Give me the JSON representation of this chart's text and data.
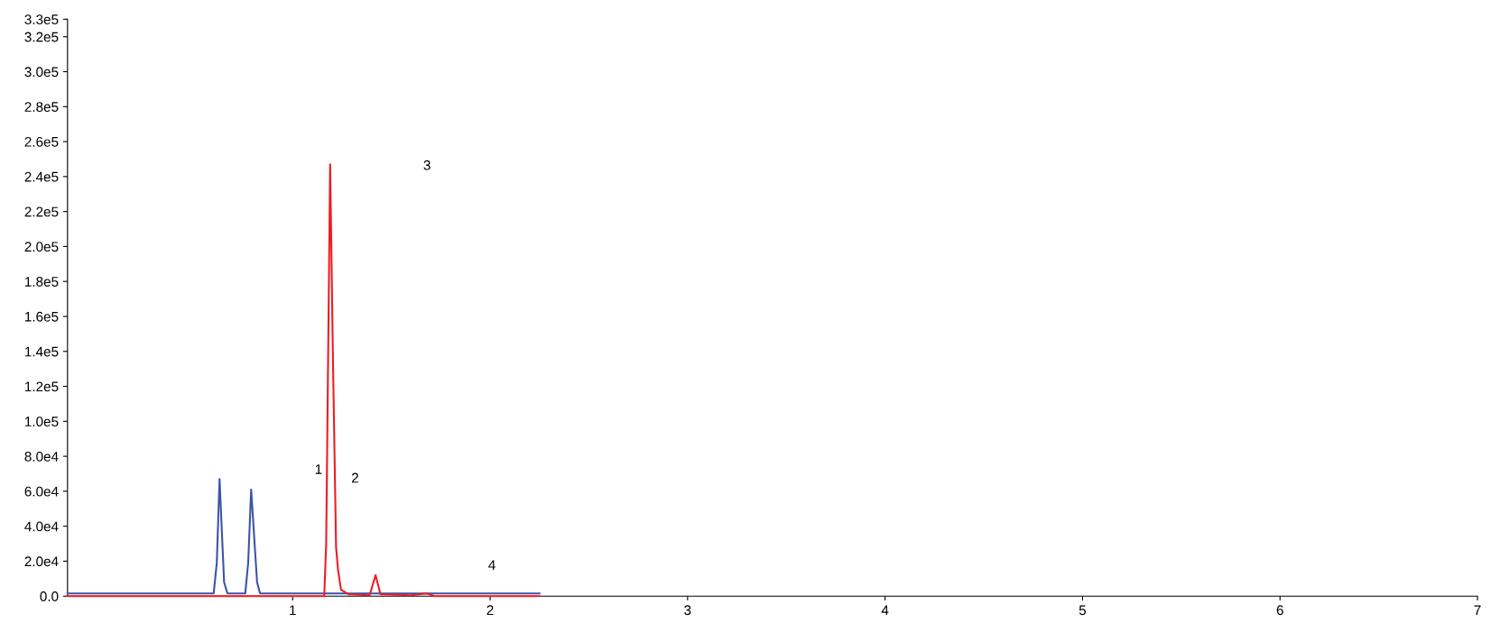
{
  "chart_data": {
    "type": "line",
    "xlim": [
      -0.14,
      7.0
    ],
    "xticks": [
      1,
      2,
      3,
      4,
      5,
      6,
      7
    ],
    "ylim": [
      0,
      330000
    ],
    "yticks": [
      {
        "value": 0,
        "label": "0.0"
      },
      {
        "value": 20000,
        "label": "2.0e4"
      },
      {
        "value": 40000,
        "label": "4.0e4"
      },
      {
        "value": 60000,
        "label": "6.0e4"
      },
      {
        "value": 80000,
        "label": "8.0e4"
      },
      {
        "value": 100000,
        "label": "1.0e5"
      },
      {
        "value": 120000,
        "label": "1.2e5"
      },
      {
        "value": 140000,
        "label": "1.4e5"
      },
      {
        "value": 160000,
        "label": "1.6e5"
      },
      {
        "value": 180000,
        "label": "1.8e5"
      },
      {
        "value": 200000,
        "label": "2.0e5"
      },
      {
        "value": 220000,
        "label": "2.2e5"
      },
      {
        "value": 240000,
        "label": "2.4e5"
      },
      {
        "value": 260000,
        "label": "2.6e5"
      },
      {
        "value": 280000,
        "label": "2.8e5"
      },
      {
        "value": 300000,
        "label": "3.0e5"
      },
      {
        "value": 320000,
        "label": "3.2e5"
      },
      {
        "value": 330000,
        "label": "3.3e5"
      }
    ],
    "grid": false,
    "marker": "none",
    "line_style": "solid",
    "series": [
      {
        "color": "#3a55a8",
        "x": [
          -0.14,
          0.3,
          0.55,
          0.6,
          0.616,
          0.63,
          0.653,
          0.67,
          0.72,
          0.76,
          0.775,
          0.79,
          0.82,
          0.835,
          0.9,
          1.5,
          2.25
        ],
        "values": [
          1500,
          1500,
          1500,
          1500,
          19000,
          67000,
          8000,
          1500,
          1500,
          1500,
          19000,
          61000,
          8000,
          1500,
          1500,
          1500,
          1500
        ]
      },
      {
        "color": "#ee1c25",
        "x": [
          -0.14,
          0.5,
          1.16,
          1.17,
          1.19,
          1.205,
          1.22,
          1.23,
          1.245,
          1.285,
          1.39,
          1.42,
          1.445,
          1.6,
          1.68,
          1.72,
          2.25
        ],
        "values": [
          0,
          0,
          0,
          30000,
          247000,
          130000,
          28000,
          15000,
          3700,
          1000,
          500,
          12000,
          1000,
          500,
          1500,
          0,
          0
        ]
      }
    ],
    "annotations": [
      "1",
      "2",
      "3",
      "4"
    ]
  }
}
